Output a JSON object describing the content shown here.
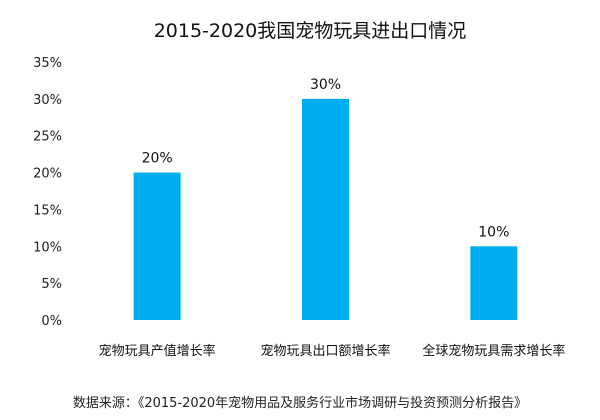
{
  "chart_data": {
    "type": "bar",
    "title": "2015-2020我国宠物玩具进出口情况",
    "categories": [
      "宠物玩具产值增长率",
      "宠物玩具出口额增长率",
      "全球宠物玩具需求增长率"
    ],
    "values": [
      20,
      30,
      10
    ],
    "data_labels": [
      "20%",
      "30%",
      "10%"
    ],
    "y_ticks": [
      0,
      5,
      10,
      15,
      20,
      25,
      30,
      35
    ],
    "y_tick_labels": [
      "0%",
      "5%",
      "10%",
      "15%",
      "20%",
      "25%",
      "30%",
      "35%"
    ],
    "ylim": [
      0,
      35
    ],
    "grid": false,
    "bar_color": "#00AEEF",
    "xlabel": "",
    "ylabel": ""
  },
  "source_note": "数据来源：《2015-2020年宠物用品及服务行业市场调研与投资预测分析报告》"
}
